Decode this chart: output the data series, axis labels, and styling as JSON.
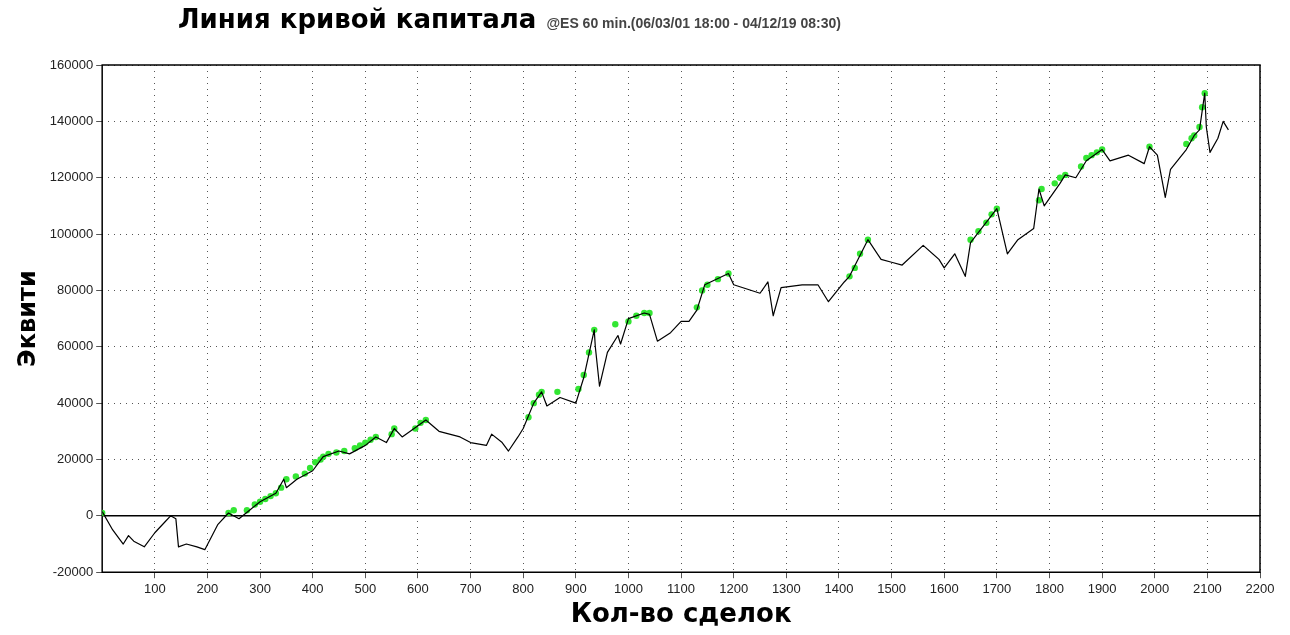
{
  "chart_data": {
    "type": "line",
    "title": "Линия кривой капитала",
    "subtitle": "@ES 60 min.(06/03/01 18:00 - 04/12/19 08:30)",
    "xlabel": "Кол-во сделок",
    "ylabel": "Эквити",
    "xlim": [
      0,
      2200
    ],
    "xticks": [
      100,
      200,
      300,
      400,
      500,
      600,
      700,
      800,
      900,
      1000,
      1100,
      1200,
      1300,
      1400,
      1500,
      1600,
      1700,
      1800,
      1900,
      2000,
      2100,
      2200
    ],
    "ylim": [
      -20000,
      160000
    ],
    "yticks": [
      -20000,
      0,
      20000,
      40000,
      60000,
      80000,
      100000,
      120000,
      140000,
      160000
    ],
    "grid": true,
    "legend": false,
    "ref_lines": [
      {
        "axis": "y",
        "value": 0,
        "color": "#000000"
      }
    ],
    "series": [
      {
        "type": "line",
        "marker": "none",
        "color": "#000000",
        "x": [
          0,
          20,
          40,
          50,
          60,
          80,
          100,
          120,
          130,
          140,
          145,
          160,
          180,
          195,
          220,
          240,
          260,
          280,
          300,
          330,
          345,
          350,
          370,
          400,
          420,
          450,
          470,
          500,
          520,
          540,
          555,
          570,
          600,
          615,
          640,
          680,
          700,
          730,
          740,
          760,
          772,
          790,
          800,
          820,
          835,
          845,
          870,
          900,
          915,
          935,
          937,
          945,
          960,
          980,
          985,
          1000,
          1030,
          1040,
          1055,
          1080,
          1100,
          1115,
          1130,
          1145,
          1190,
          1200,
          1250,
          1265,
          1275,
          1290,
          1330,
          1360,
          1380,
          1410,
          1420,
          1455,
          1480,
          1500,
          1520,
          1560,
          1590,
          1600,
          1620,
          1640,
          1650,
          1700,
          1720,
          1740,
          1770,
          1780,
          1790,
          1820,
          1830,
          1850,
          1870,
          1900,
          1915,
          1950,
          1980,
          1990,
          2005,
          2020,
          2030,
          2060,
          2075,
          2085,
          2095,
          2098,
          2105,
          2120,
          2130,
          2140
        ],
        "values": [
          1500,
          -5000,
          -10000,
          -7000,
          -9000,
          -11000,
          -6000,
          -2000,
          0,
          -1000,
          -11000,
          -10000,
          -11000,
          -12000,
          -3000,
          1000,
          -1000,
          2000,
          5000,
          8000,
          13000,
          10000,
          13000,
          16000,
          21000,
          23000,
          22000,
          25000,
          28000,
          26000,
          31000,
          28000,
          32000,
          34000,
          30000,
          28000,
          26000,
          25000,
          29000,
          26000,
          23000,
          28000,
          31000,
          40000,
          44000,
          39000,
          42000,
          40000,
          49000,
          66000,
          60000,
          46000,
          58000,
          64000,
          61000,
          70000,
          72000,
          71500,
          62000,
          65000,
          69000,
          69000,
          73000,
          82000,
          86000,
          82000,
          79000,
          83000,
          71000,
          81000,
          82000,
          82000,
          76000,
          83000,
          85000,
          98000,
          91000,
          90000,
          89000,
          96000,
          91000,
          88000,
          93000,
          85000,
          97000,
          109000,
          93000,
          98000,
          102000,
          116000,
          110000,
          118000,
          121000,
          120000,
          126000,
          130000,
          126000,
          128000,
          125000,
          131000,
          128000,
          113000,
          123000,
          130000,
          135000,
          137000,
          150000,
          138000,
          129000,
          134000,
          140000,
          137000
        ]
      },
      {
        "type": "scatter",
        "marker": "circle",
        "color": "#33e633",
        "x": [
          0,
          240,
          250,
          275,
          290,
          300,
          310,
          320,
          330,
          340,
          350,
          368,
          385,
          395,
          405,
          415,
          420,
          430,
          445,
          460,
          480,
          490,
          500,
          510,
          520,
          550,
          555,
          595,
          605,
          615,
          810,
          820,
          830,
          835,
          865,
          905,
          915,
          925,
          935,
          975,
          1000,
          1015,
          1030,
          1040,
          1130,
          1140,
          1150,
          1170,
          1190,
          1420,
          1430,
          1440,
          1455,
          1650,
          1665,
          1680,
          1690,
          1700,
          1780,
          1785,
          1810,
          1820,
          1830,
          1860,
          1870,
          1880,
          1890,
          1900,
          1990,
          2060,
          2070,
          2075,
          2085,
          2090,
          2095
        ],
        "values": [
          1000,
          1000,
          2000,
          2000,
          4000,
          5000,
          6000,
          7000,
          8000,
          10000,
          13000,
          14000,
          15000,
          17000,
          19000,
          20000,
          21000,
          22000,
          22500,
          23000,
          24000,
          25000,
          26000,
          27000,
          28000,
          29000,
          31000,
          31000,
          33000,
          34000,
          35000,
          40000,
          43000,
          44000,
          44000,
          45000,
          50000,
          58000,
          66000,
          68000,
          69000,
          71000,
          72000,
          72000,
          74000,
          80000,
          82000,
          84000,
          86000,
          85000,
          88000,
          93000,
          98000,
          98000,
          101000,
          104000,
          107000,
          109000,
          112000,
          116000,
          118000,
          120000,
          121000,
          124000,
          127000,
          128000,
          129000,
          130000,
          131000,
          132000,
          134000,
          135000,
          138000,
          145000,
          150000
        ]
      }
    ]
  }
}
